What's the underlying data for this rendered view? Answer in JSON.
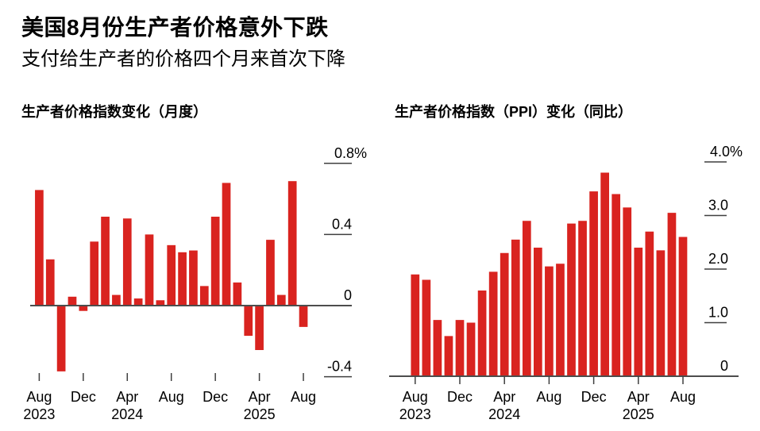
{
  "header": {
    "title": "美国8月份生产者价格意外下跌",
    "subtitle": "支付给生产者的价格四个月来首次下降"
  },
  "colors": {
    "bar": "#d9231f",
    "axis_line": "#4d4d4d",
    "tick_line": "#3f3f3f",
    "text": "#000000",
    "background": "#ffffff"
  },
  "chart_data": [
    {
      "name": "ppi-monthly-change",
      "type": "bar",
      "title": "生产者价格指数变化（月度）",
      "xlabel": "",
      "ylabel": "",
      "unit": "%",
      "grid": false,
      "legend": "none",
      "categories": [
        "Aug 2023",
        "Sep 2023",
        "Oct 2023",
        "Nov 2023",
        "Dec 2023",
        "Jan 2024",
        "Feb 2024",
        "Mar 2024",
        "Apr 2024",
        "May 2024",
        "Jun 2024",
        "Jul 2024",
        "Aug 2024",
        "Sep 2024",
        "Oct 2024",
        "Nov 2024",
        "Dec 2024",
        "Jan 2025",
        "Feb 2025",
        "Mar 2025",
        "Apr 2025",
        "May 2025",
        "Jun 2025",
        "Jul 2025",
        "Aug 2025"
      ],
      "values": [
        0.65,
        0.26,
        -0.37,
        0.05,
        -0.03,
        0.36,
        0.5,
        0.06,
        0.49,
        0.04,
        0.4,
        0.03,
        0.34,
        0.3,
        0.31,
        0.11,
        0.5,
        0.69,
        0.13,
        -0.17,
        -0.25,
        0.37,
        0.06,
        0.7,
        -0.12
      ],
      "ylim": [
        -0.4,
        0.96
      ],
      "yticks": [
        {
          "value": 0.8,
          "label": "0.8%"
        },
        {
          "value": 0.4,
          "label": "0.4"
        },
        {
          "value": 0.0,
          "label": "0"
        },
        {
          "value": -0.4,
          "label": "-0.4"
        }
      ],
      "xticks": [
        {
          "i": 0,
          "m": "Aug",
          "y": "2023"
        },
        {
          "i": 4,
          "m": "Dec"
        },
        {
          "i": 8,
          "m": "Apr",
          "y": "2024"
        },
        {
          "i": 12,
          "m": "Aug"
        },
        {
          "i": 16,
          "m": "Dec"
        },
        {
          "i": 20,
          "m": "Apr",
          "y": "2025"
        },
        {
          "i": 24,
          "m": "Aug"
        }
      ]
    },
    {
      "name": "ppi-yoy-change",
      "type": "bar",
      "title": "生产者价格指数（PPI）变化（同比）",
      "xlabel": "",
      "ylabel": "",
      "unit": "%",
      "grid": false,
      "legend": "none",
      "categories": [
        "Aug 2023",
        "Sep 2023",
        "Oct 2023",
        "Nov 2023",
        "Dec 2023",
        "Jan 2024",
        "Feb 2024",
        "Mar 2024",
        "Apr 2024",
        "May 2024",
        "Jun 2024",
        "Jul 2024",
        "Aug 2024",
        "Sep 2024",
        "Oct 2024",
        "Nov 2024",
        "Dec 2024",
        "Jan 2025",
        "Feb 2025",
        "Mar 2025",
        "Apr 2025",
        "May 2025",
        "Jun 2025",
        "Jul 2025",
        "Aug 2025"
      ],
      "values": [
        1.9,
        1.8,
        1.05,
        0.75,
        1.05,
        1.0,
        1.6,
        1.95,
        2.3,
        2.55,
        2.9,
        2.4,
        2.05,
        2.1,
        2.85,
        2.9,
        3.45,
        3.8,
        3.4,
        3.15,
        2.4,
        2.7,
        2.35,
        3.05,
        2.6
      ],
      "ylim": [
        0,
        4.5
      ],
      "yticks": [
        {
          "value": 4.0,
          "label": "4.0%"
        },
        {
          "value": 3.0,
          "label": "3.0"
        },
        {
          "value": 2.0,
          "label": "2.0"
        },
        {
          "value": 1.0,
          "label": "1.0"
        },
        {
          "value": 0.0,
          "label": "0"
        }
      ],
      "xticks": [
        {
          "i": 0,
          "m": "Aug",
          "y": "2023"
        },
        {
          "i": 4,
          "m": "Dec"
        },
        {
          "i": 8,
          "m": "Apr",
          "y": "2024"
        },
        {
          "i": 12,
          "m": "Aug"
        },
        {
          "i": 16,
          "m": "Dec"
        },
        {
          "i": 20,
          "m": "Apr",
          "y": "2025"
        },
        {
          "i": 24,
          "m": "Aug"
        }
      ]
    }
  ]
}
